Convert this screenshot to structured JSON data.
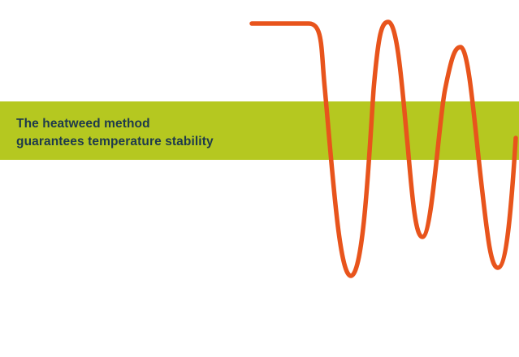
{
  "headline": {
    "line1": "The heatweed method",
    "line2": "guarantees temperature stability"
  },
  "colors": {
    "band": "#b5c820",
    "wave": "#e8541c",
    "text": "#1e3a4c",
    "background": "#ffffff"
  },
  "graphic": {
    "name": "oscillating-temperature-wave"
  }
}
